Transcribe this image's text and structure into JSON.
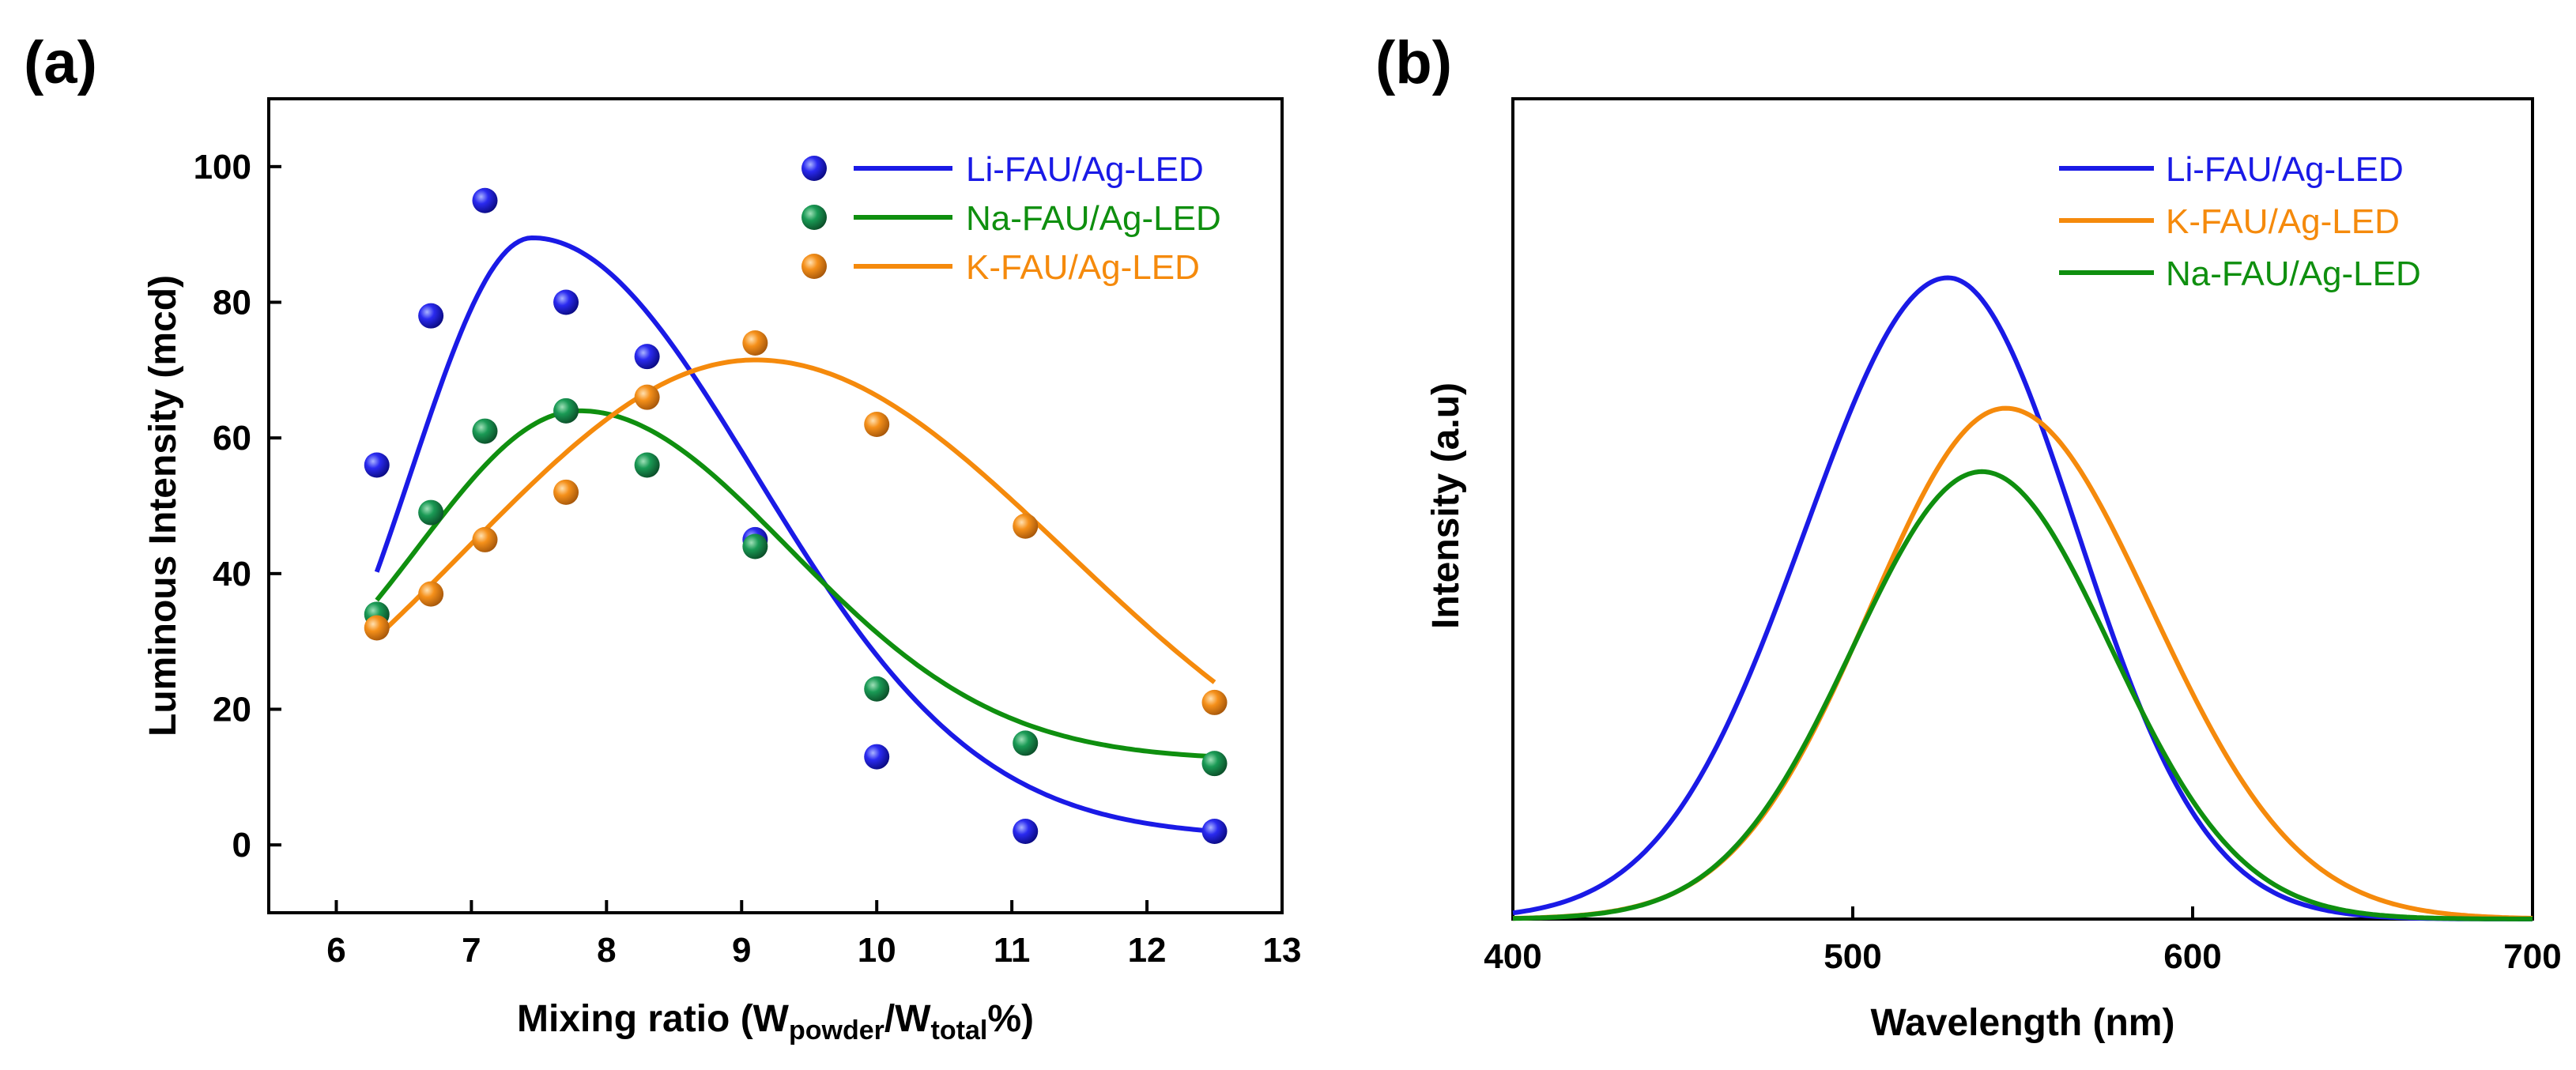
{
  "chart_data": [
    {
      "panel_label": "(a)",
      "type": "scatter",
      "xlabel": {
        "main": "Mixing ratio (W",
        "sub1": "powder",
        "mid": "/W",
        "sub2": "total",
        "end": "%)"
      },
      "ylabel": "Luminous Intensity (mcd)",
      "xlim": [
        5.5,
        13
      ],
      "ylim": [
        -10,
        110
      ],
      "xticks": [
        6,
        7,
        8,
        9,
        10,
        11,
        12,
        13
      ],
      "yticks": [
        0,
        20,
        40,
        60,
        80,
        100
      ],
      "legend_position": "top-right",
      "series": [
        {
          "name": "Li-FAU/Ag-LED",
          "color": "#1a1ae6",
          "x": [
            6.3,
            6.7,
            7.1,
            7.7,
            8.3,
            9.1,
            10.0,
            11.1,
            12.5
          ],
          "y": [
            56,
            78,
            95,
            80,
            72,
            45,
            13,
            2,
            2
          ],
          "fit": {
            "baseline": 1.2,
            "amp": 88.3,
            "center": 7.45,
            "width_left": 0.9,
            "width_right": 1.65
          }
        },
        {
          "name": "Na-FAU/Ag-LED",
          "color": "#0f8f0f",
          "x": [
            6.3,
            6.7,
            7.1,
            7.7,
            8.3,
            9.1,
            10.0,
            11.1,
            12.5
          ],
          "y": [
            34,
            49,
            61,
            64,
            56,
            44,
            23,
            15,
            12
          ],
          "fit": {
            "baseline": 12.5,
            "amp": 51.5,
            "center": 7.8,
            "width_left": 1.2,
            "width_right": 1.55
          }
        },
        {
          "name": "K-FAU/Ag-LED",
          "color": "#f58a0c",
          "x": [
            6.3,
            6.7,
            7.1,
            7.7,
            8.3,
            9.1,
            10.0,
            11.1,
            12.5
          ],
          "y": [
            32,
            37,
            45,
            52,
            66,
            74,
            62,
            47,
            21
          ],
          "fit": {
            "baseline": 0,
            "amp": 71.5,
            "center": 9.1,
            "width_left": 2.15,
            "width_right": 2.3
          }
        }
      ]
    },
    {
      "panel_label": "(b)",
      "type": "line",
      "xlabel": "Wavelength (nm)",
      "ylabel": "Intensity (a.u)",
      "xlim": [
        400,
        700
      ],
      "ylim": [
        0,
        1.1
      ],
      "xticks": [
        400,
        500,
        600,
        700
      ],
      "legend_position": "top-right",
      "series": [
        {
          "name": "Li-FAU/Ag-LED",
          "color": "#1a1ae6",
          "peak_nm": 528,
          "peak_intensity": 0.86,
          "sigma_left": 42,
          "sigma_right": 38
        },
        {
          "name": "K-FAU/Ag-LED",
          "color": "#f58a0c",
          "peak_nm": 545,
          "peak_intensity": 0.685,
          "sigma_left": 40,
          "sigma_right": 43
        },
        {
          "name": "Na-FAU/Ag-LED",
          "color": "#0f8f0f",
          "peak_nm": 538,
          "peak_intensity": 0.6,
          "sigma_left": 38,
          "sigma_right": 38
        }
      ]
    }
  ]
}
